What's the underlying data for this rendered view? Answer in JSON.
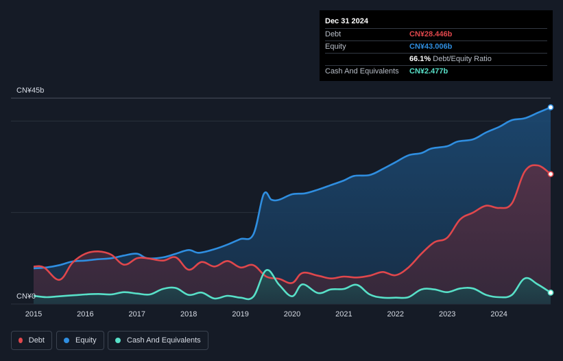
{
  "tooltip": {
    "date": "Dec 31 2024",
    "rows": {
      "debt": {
        "label": "Debt",
        "value": "CN¥28.446b"
      },
      "equity": {
        "label": "Equity",
        "value": "CN¥43.006b"
      },
      "ratio": {
        "value": "66.1%",
        "label": "Debt/Equity Ratio"
      },
      "cash": {
        "label": "Cash And Equivalents",
        "value": "CN¥2.477b"
      }
    }
  },
  "legend": [
    {
      "key": "debt",
      "label": "Debt"
    },
    {
      "key": "equity",
      "label": "Equity"
    },
    {
      "key": "cash",
      "label": "Cash And Equivalents"
    }
  ],
  "colors": {
    "debt": "#e0474c",
    "equity": "#2f8ee0",
    "cash": "#58e0c8",
    "background": "#151b26"
  },
  "chart_data": {
    "type": "area",
    "title": "",
    "ylabel": "",
    "xlabel": "",
    "y_top_label": "CN¥45b",
    "y_bottom_label": "CN¥0",
    "ylim": [
      0,
      45
    ],
    "xlim": [
      2015,
      2025
    ],
    "x_ticks": [
      "2015",
      "2016",
      "2017",
      "2018",
      "2019",
      "2020",
      "2021",
      "2022",
      "2023",
      "2024"
    ],
    "series": [
      {
        "name": "Equity",
        "key": "equity",
        "x": [
          2015.0,
          2015.25,
          2015.5,
          2015.75,
          2016.0,
          2016.25,
          2016.5,
          2016.75,
          2017.0,
          2017.2,
          2017.5,
          2017.75,
          2018.0,
          2018.2,
          2018.5,
          2018.75,
          2019.0,
          2019.25,
          2019.45,
          2019.6,
          2019.75,
          2020.0,
          2020.25,
          2020.5,
          2020.75,
          2021.0,
          2021.2,
          2021.5,
          2021.75,
          2022.0,
          2022.25,
          2022.5,
          2022.7,
          2023.0,
          2023.2,
          2023.5,
          2023.75,
          2024.0,
          2024.25,
          2024.5,
          2024.75,
          2025.0
        ],
        "values": [
          7.8,
          8.0,
          8.5,
          9.3,
          9.5,
          9.8,
          10.0,
          10.6,
          11.0,
          10.0,
          10.2,
          11.0,
          11.8,
          11.2,
          12.0,
          13.0,
          14.2,
          15.2,
          24.0,
          22.8,
          22.8,
          24.0,
          24.2,
          25.0,
          26.0,
          27.0,
          28.0,
          28.2,
          29.5,
          31.0,
          32.5,
          33.0,
          34.0,
          34.5,
          35.5,
          36.0,
          37.5,
          38.7,
          40.2,
          40.6,
          41.8,
          43.0
        ]
      },
      {
        "name": "Debt",
        "key": "debt",
        "x": [
          2015.0,
          2015.2,
          2015.5,
          2015.75,
          2016.0,
          2016.25,
          2016.5,
          2016.75,
          2017.0,
          2017.2,
          2017.5,
          2017.75,
          2018.0,
          2018.25,
          2018.5,
          2018.75,
          2019.0,
          2019.25,
          2019.5,
          2019.75,
          2020.0,
          2020.2,
          2020.5,
          2020.75,
          2021.0,
          2021.25,
          2021.5,
          2021.75,
          2022.0,
          2022.25,
          2022.5,
          2022.75,
          2023.0,
          2023.25,
          2023.5,
          2023.75,
          2024.0,
          2024.25,
          2024.5,
          2024.75,
          2025.0
        ],
        "values": [
          8.2,
          8.0,
          5.3,
          9.0,
          11.0,
          11.5,
          10.8,
          8.6,
          10.0,
          10.0,
          9.5,
          10.2,
          7.5,
          9.2,
          8.2,
          9.4,
          8.0,
          8.5,
          6.0,
          5.5,
          4.6,
          6.8,
          6.2,
          5.6,
          6.0,
          5.8,
          6.2,
          7.0,
          6.3,
          8.0,
          11.0,
          13.5,
          14.5,
          18.5,
          20.0,
          21.5,
          21.0,
          22.0,
          29.0,
          30.3,
          28.4
        ]
      },
      {
        "name": "Cash And Equivalents",
        "key": "cash",
        "x": [
          2015.0,
          2015.25,
          2015.5,
          2015.75,
          2016.0,
          2016.25,
          2016.5,
          2016.75,
          2017.0,
          2017.25,
          2017.5,
          2017.75,
          2018.0,
          2018.25,
          2018.5,
          2018.75,
          2019.0,
          2019.25,
          2019.5,
          2019.75,
          2020.0,
          2020.2,
          2020.5,
          2020.75,
          2021.0,
          2021.25,
          2021.5,
          2021.75,
          2022.0,
          2022.25,
          2022.5,
          2022.75,
          2023.0,
          2023.25,
          2023.5,
          2023.75,
          2024.0,
          2024.25,
          2024.5,
          2024.75,
          2025.0
        ],
        "values": [
          1.8,
          1.5,
          1.7,
          1.9,
          2.1,
          2.2,
          2.1,
          2.6,
          2.3,
          2.1,
          3.3,
          3.5,
          2.0,
          2.5,
          1.2,
          1.8,
          1.4,
          1.6,
          7.4,
          4.2,
          1.7,
          4.3,
          2.4,
          3.2,
          3.3,
          4.2,
          2.1,
          1.4,
          1.4,
          1.5,
          3.2,
          3.2,
          2.6,
          3.4,
          3.4,
          2.0,
          1.5,
          2.0,
          5.6,
          4.3,
          2.5
        ]
      }
    ]
  }
}
